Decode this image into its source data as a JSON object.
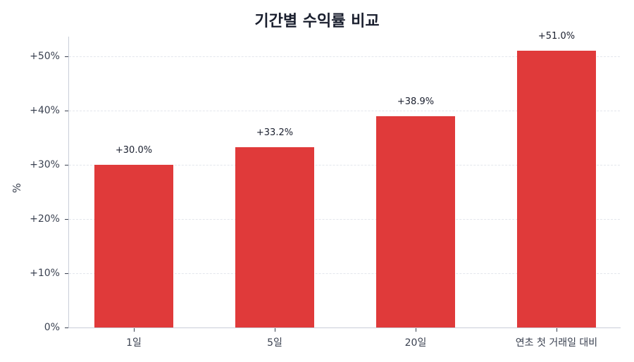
{
  "chart_data": {
    "type": "bar",
    "title": "기간별 수익률 비교",
    "xlabel": "",
    "ylabel": "%",
    "categories": [
      "1일",
      "5일",
      "20일",
      "연초 첫 거래일 대비"
    ],
    "values": [
      30.0,
      33.2,
      38.9,
      51.0
    ],
    "value_labels": [
      "+30.0%",
      "+33.2%",
      "+38.9%",
      "+51.0%"
    ],
    "yticks": [
      0,
      10,
      20,
      30,
      40,
      50
    ],
    "ytick_labels": [
      "0%",
      "+10%",
      "+20%",
      "+30%",
      "+40%",
      "+50%"
    ],
    "ylim": [
      0,
      53.6
    ],
    "grid": "horizontal dashed",
    "legend": "none",
    "bar_color": "#e03a3a"
  },
  "title": "기간별 수익률 비교",
  "ylabel": "%"
}
